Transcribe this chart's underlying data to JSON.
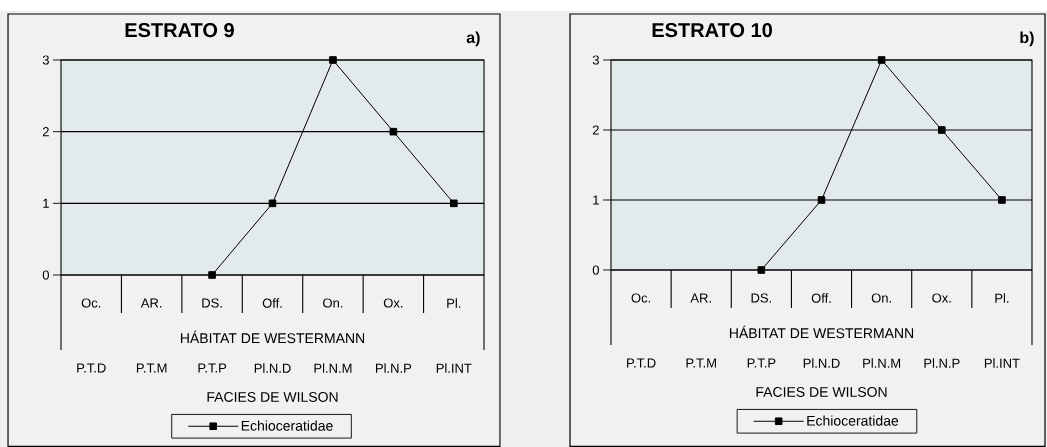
{
  "chart_data": [
    {
      "type": "line",
      "title": "ESTRATO 9",
      "categories": [
        "Oc.",
        "AR.",
        "DS.",
        "Off.",
        "On.",
        "Ox.",
        "Pl."
      ],
      "xlabel": "HÁBITAT DE WESTERMANN",
      "ylim": [
        0,
        3
      ],
      "yticks": [
        0,
        1,
        2,
        3
      ],
      "grid": "y",
      "legend": "bottom",
      "marker": "square",
      "line_style": "solid",
      "annotations": [
        "a)",
        "P.T.D",
        "P.T.M",
        "P.T.P",
        "Pl.N.D",
        "Pl.N.M",
        "Pl.N.P",
        "Pl.INT",
        "FACIES DE WILSON"
      ],
      "series": [
        {
          "name": "Echioceratidae",
          "color": "#000000",
          "values": [
            null,
            null,
            0,
            1,
            3,
            2,
            1
          ]
        }
      ]
    },
    {
      "type": "line",
      "title": "ESTRATO 10",
      "categories": [
        "Oc.",
        "AR.",
        "DS.",
        "Off.",
        "On.",
        "Ox.",
        "Pl."
      ],
      "xlabel": "HÁBITAT DE WESTERMANN",
      "ylim": [
        0,
        3
      ],
      "yticks": [
        0,
        1,
        2,
        3
      ],
      "grid": "y",
      "legend": "bottom",
      "marker": "square",
      "line_style": "solid",
      "annotations": [
        "b)",
        "P.T.D",
        "P.T.M",
        "P.T.P",
        "Pl.N.D",
        "Pl.N.M",
        "Pl.N.P",
        "Pl.INT",
        "FACIES DE WILSON"
      ],
      "series": [
        {
          "name": "Echioceratidae",
          "color": "#000000",
          "values": [
            null,
            null,
            0,
            1,
            3,
            2,
            1
          ]
        }
      ]
    }
  ]
}
